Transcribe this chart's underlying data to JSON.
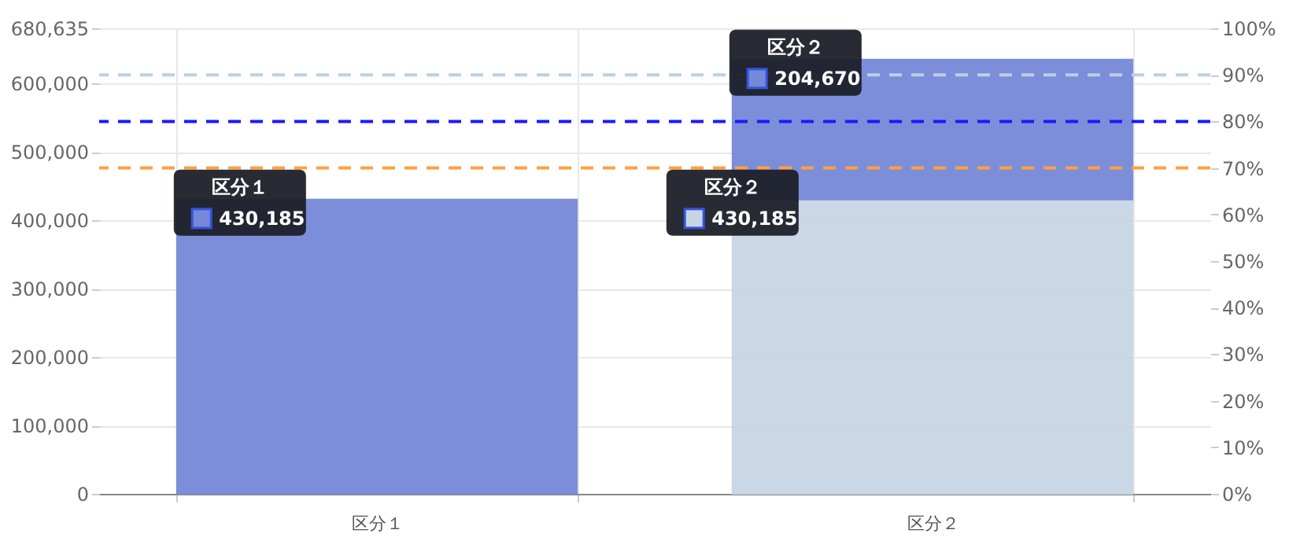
{
  "chart_data": {
    "type": "bar",
    "categories": [
      "区分１",
      "区分２"
    ],
    "stacked": true,
    "series": [
      {
        "color": "#c8d5e6",
        "values": [
          null,
          430185
        ],
        "value_labels": [
          null,
          "430,185"
        ]
      },
      {
        "color": "#7688d8",
        "values": [
          430185,
          204670
        ],
        "value_labels": [
          "430,185",
          "204,670"
        ]
      }
    ],
    "ylim": [
      0,
      680635
    ],
    "yticks": [
      0,
      {
        "value": 100000,
        "label": "100,000"
      },
      {
        "value": 200000,
        "label": "200,000"
      },
      {
        "value": 300000,
        "label": "300,000"
      },
      {
        "value": 400000,
        "label": "400,000"
      },
      {
        "value": 500000,
        "label": "500,000"
      },
      {
        "value": 600000,
        "label": "600,000"
      },
      {
        "value": 680635,
        "label": "680,635"
      }
    ],
    "y2lim": [
      0,
      100
    ],
    "y2ticks": [
      {
        "value": 0,
        "label": "0%"
      },
      {
        "value": 10,
        "label": "10%"
      },
      {
        "value": 20,
        "label": "20%"
      },
      {
        "value": 30,
        "label": "30%"
      },
      {
        "value": 40,
        "label": "40%"
      },
      {
        "value": 50,
        "label": "50%"
      },
      {
        "value": 60,
        "label": "60%"
      },
      {
        "value": 70,
        "label": "70%"
      },
      {
        "value": 80,
        "label": "80%"
      },
      {
        "value": 90,
        "label": "90%"
      },
      {
        "value": 100,
        "label": "100%"
      }
    ],
    "ref_lines": [
      {
        "axis": "y2",
        "value": 90,
        "color": "#bcd0e6",
        "line_style": "dashed"
      },
      {
        "axis": "y2",
        "value": 80,
        "color": "#1a1aff",
        "line_style": "dashed"
      },
      {
        "axis": "y2",
        "value": 70,
        "color": "#ffa040",
        "line_style": "dashed"
      }
    ],
    "grid": true
  }
}
